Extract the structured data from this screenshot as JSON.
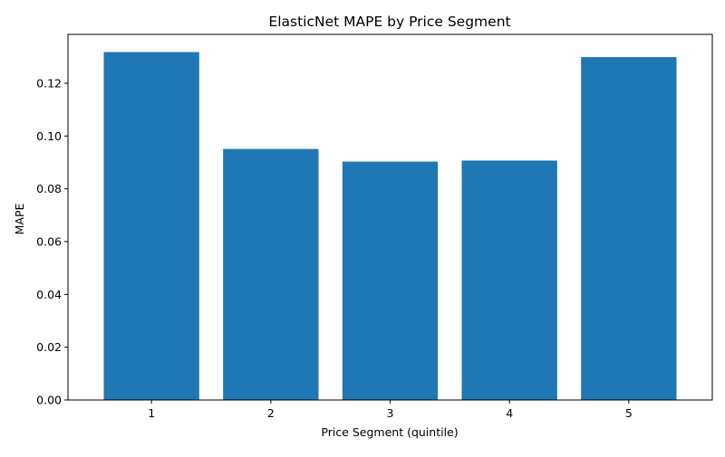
{
  "chart_data": {
    "type": "bar",
    "title": "ElasticNet MAPE by Price Segment",
    "xlabel": "Price Segment (quintile)",
    "ylabel": "MAPE",
    "categories": [
      "1",
      "2",
      "3",
      "4",
      "5"
    ],
    "values": [
      0.1318,
      0.0951,
      0.0903,
      0.0907,
      0.1299
    ],
    "ylim": [
      0,
      0.1385
    ],
    "yticks": [
      "0.00",
      "0.02",
      "0.04",
      "0.06",
      "0.08",
      "0.10",
      "0.12"
    ],
    "ytick_values": [
      0.0,
      0.02,
      0.04,
      0.06,
      0.08,
      0.1,
      0.12
    ],
    "grid": false,
    "legend": "none",
    "bar_color": "#1f77b4"
  }
}
